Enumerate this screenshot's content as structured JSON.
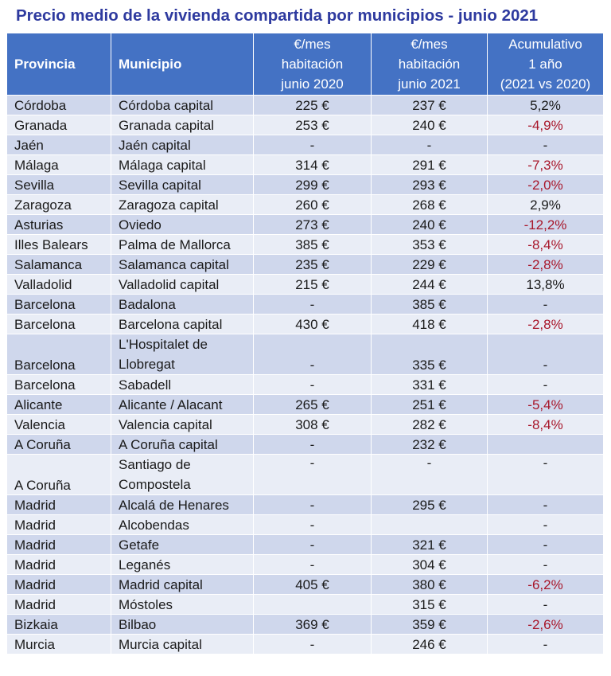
{
  "title": "Precio medio de la vivienda compartida por municipios - junio 2021",
  "colors": {
    "header_bg": "#4472c4",
    "row_dark": "#cfd7ec",
    "row_light": "#e9edf6",
    "negative_text": "#a8162a",
    "title": "#2e3a9f"
  },
  "headers": {
    "provincia": "Provincia",
    "municipio": "Municipio",
    "h2020": [
      "€/mes",
      "habitación",
      "junio 2020"
    ],
    "h2021": [
      "€/mes",
      "habitación",
      "junio 2021"
    ],
    "acum": [
      "Acumulativo",
      "1 año",
      "(2021 vs 2020)"
    ]
  },
  "rows": [
    {
      "provincia": "Córdoba",
      "municipio": "Córdoba capital",
      "p2020": "225 €",
      "p2021": "237 €",
      "acum": "5,2%"
    },
    {
      "provincia": "Granada",
      "municipio": "Granada capital",
      "p2020": "253 €",
      "p2021": "240 €",
      "acum": "-4,9%"
    },
    {
      "provincia": "Jaén",
      "municipio": "Jaén capital",
      "p2020": "-",
      "p2021": "-",
      "acum": "-"
    },
    {
      "provincia": "Málaga",
      "municipio": "Málaga capital",
      "p2020": "314 €",
      "p2021": "291 €",
      "acum": "-7,3%"
    },
    {
      "provincia": "Sevilla",
      "municipio": "Sevilla capital",
      "p2020": "299 €",
      "p2021": "293 €",
      "acum": "-2,0%"
    },
    {
      "provincia": "Zaragoza",
      "municipio": "Zaragoza capital",
      "p2020": "260 €",
      "p2021": "268 €",
      "acum": "2,9%"
    },
    {
      "provincia": "Asturias",
      "municipio": "Oviedo",
      "p2020": "273 €",
      "p2021": "240 €",
      "acum": "-12,2%"
    },
    {
      "provincia": "Illes Balears",
      "municipio": "Palma de Mallorca",
      "p2020": "385 €",
      "p2021": "353 €",
      "acum": "-8,4%"
    },
    {
      "provincia": "Salamanca",
      "municipio": "Salamanca capital",
      "p2020": "235 €",
      "p2021": "229 €",
      "acum": "-2,8%"
    },
    {
      "provincia": "Valladolid",
      "municipio": "Valladolid capital",
      "p2020": "215 €",
      "p2021": "244 €",
      "acum": "13,8%"
    },
    {
      "provincia": "Barcelona",
      "municipio": "Badalona",
      "p2020": "-",
      "p2021": "385 €",
      "acum": "-"
    },
    {
      "provincia": "Barcelona",
      "municipio": "Barcelona capital",
      "p2020": "430 €",
      "p2021": "418 €",
      "acum": "-2,8%"
    },
    {
      "provincia": "Barcelona",
      "municipio": "L'Hospitalet de Llobregat",
      "p2020": "-",
      "p2021": "335 €",
      "acum": "-"
    },
    {
      "provincia": "Barcelona",
      "municipio": "Sabadell",
      "p2020": "-",
      "p2021": "331 €",
      "acum": "-"
    },
    {
      "provincia": "Alicante",
      "municipio": "Alicante / Alacant",
      "p2020": "265 €",
      "p2021": "251 €",
      "acum": "-5,4%"
    },
    {
      "provincia": "Valencia",
      "municipio": "Valencia capital",
      "p2020": "308 €",
      "p2021": "282 €",
      "acum": "-8,4%"
    },
    {
      "provincia": "A Coruña",
      "municipio": "A Coruña capital",
      "p2020": "-",
      "p2021": "232 €",
      "acum": ""
    },
    {
      "provincia": "A Coruña",
      "municipio": "Santiago de Compostela",
      "p2020": "-",
      "p2021": "-",
      "acum": "-"
    },
    {
      "provincia": "Madrid",
      "municipio": "Alcalá de Henares",
      "p2020": "-",
      "p2021": "295 €",
      "acum": "-"
    },
    {
      "provincia": "Madrid",
      "municipio": "Alcobendas",
      "p2020": "-",
      "p2021": "",
      "acum": "-"
    },
    {
      "provincia": "Madrid",
      "municipio": "Getafe",
      "p2020": "-",
      "p2021": "321 €",
      "acum": "-"
    },
    {
      "provincia": "Madrid",
      "municipio": "Leganés",
      "p2020": "-",
      "p2021": "304 €",
      "acum": "-"
    },
    {
      "provincia": "Madrid",
      "municipio": "Madrid capital",
      "p2020": "405 €",
      "p2021": "380 €",
      "acum": "-6,2%"
    },
    {
      "provincia": "Madrid",
      "municipio": "Móstoles",
      "p2020": "",
      "p2021": "315 €",
      "acum": "-"
    },
    {
      "provincia": "Bizkaia",
      "municipio": "Bilbao",
      "p2020": "369 €",
      "p2021": "359 €",
      "acum": "-2,6%"
    },
    {
      "provincia": "Murcia",
      "municipio": "Murcia capital",
      "p2020": "-",
      "p2021": "246 €",
      "acum": "-"
    }
  ]
}
